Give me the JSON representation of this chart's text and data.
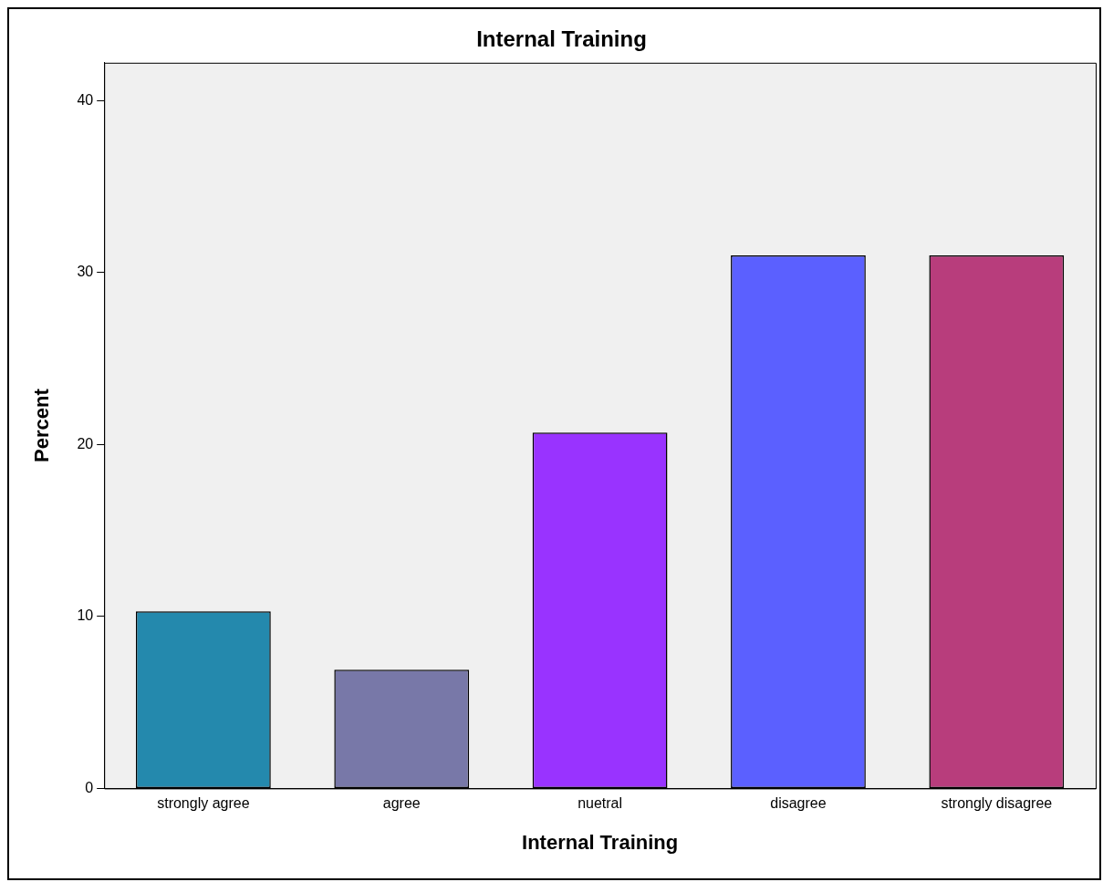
{
  "chart_data": {
    "type": "bar",
    "title": "Internal Training",
    "xlabel": "Internal Training",
    "ylabel": "Percent",
    "categories": [
      "strongly agree",
      "agree",
      "nuetral",
      "disagree",
      "strongly disagree"
    ],
    "values": [
      10.3,
      6.9,
      20.7,
      31.0,
      31.0
    ],
    "colors": [
      "#2489ad",
      "#7878a8",
      "#9933ff",
      "#5b60ff",
      "#b83d7c"
    ],
    "ylim": [
      0,
      42.2
    ],
    "yticks": [
      0,
      10,
      20,
      30,
      40
    ],
    "grid": false,
    "legend": false
  }
}
